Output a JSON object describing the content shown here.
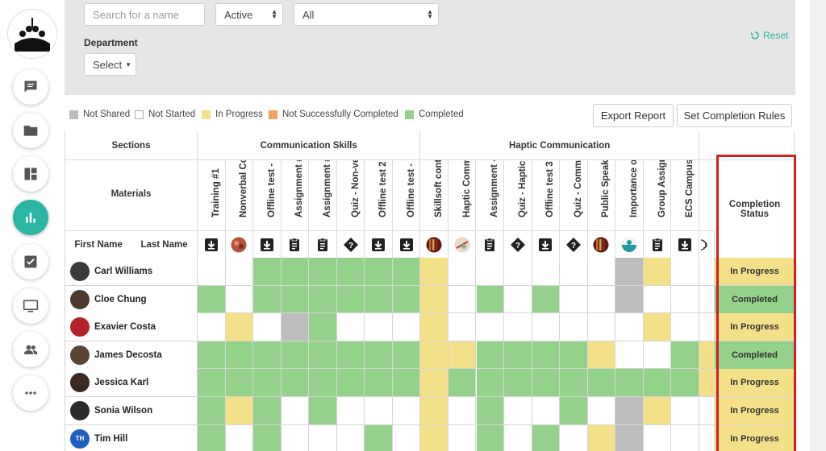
{
  "filters": {
    "search_placeholder": "Search for a name",
    "status_value": "Active",
    "group_value": "All",
    "department_label": "Department",
    "department_value": "Select",
    "reset_label": "Reset"
  },
  "legend": [
    {
      "label": "Not Shared",
      "color": "#bdbdbd"
    },
    {
      "label": "Not Started",
      "color": "#ffffff"
    },
    {
      "label": "In Progress",
      "color": "#f5e08a"
    },
    {
      "label": "Not Successfully Completed",
      "color": "#f4a260"
    },
    {
      "label": "Completed",
      "color": "#94d18a"
    }
  ],
  "actions": {
    "export_label": "Export Report",
    "rules_label": "Set Completion Rules"
  },
  "table": {
    "sections_label": "Sections",
    "materials_label": "Materials",
    "first_name_label": "First Name",
    "last_name_label": "Last Name",
    "completion_label": "Completion Status",
    "sections": [
      {
        "name": "Communication Skills",
        "span": 8
      },
      {
        "name": "Haptic Communication",
        "span": 10
      }
    ],
    "materials": [
      {
        "name": "Training #1",
        "icon": "download-icon"
      },
      {
        "name": "Nonverbal Co...",
        "icon": "thumbnail-orange"
      },
      {
        "name": "Offline test - ...",
        "icon": "download-icon"
      },
      {
        "name": "Assignment #...",
        "icon": "clipboard-icon"
      },
      {
        "name": "Assignment #...",
        "icon": "clipboard-icon"
      },
      {
        "name": "Quiz - Non-ve...",
        "icon": "quiz-icon"
      },
      {
        "name": "Offline test 2 ...",
        "icon": "download-icon"
      },
      {
        "name": "Offline test - ...",
        "icon": "download-icon"
      },
      {
        "name": "Skillsoft cont...",
        "icon": "thumbnail-books"
      },
      {
        "name": "Haptic Comm...",
        "icon": "thumbnail-craft"
      },
      {
        "name": "Assignment - ...",
        "icon": "clipboard-icon"
      },
      {
        "name": "Quiz - Haptic ...",
        "icon": "quiz-icon"
      },
      {
        "name": "Offline test 3 ...",
        "icon": "download-icon"
      },
      {
        "name": "Quiz - Comm...",
        "icon": "quiz-icon"
      },
      {
        "name": "Public Speaki...",
        "icon": "thumbnail-books"
      },
      {
        "name": "Importance o...",
        "icon": "thumbnail-teal"
      },
      {
        "name": "Group Assign...",
        "icon": "clipboard-icon"
      },
      {
        "name": "ECS Campus ...",
        "icon": "download-icon"
      }
    ],
    "status_colors": {
      "G": "#94d18a",
      "Y": "#f5e08a",
      "S": "#bdbdbd",
      "W": "#ffffff"
    },
    "rows": [
      {
        "name": "Carl Williams",
        "status": "In Progress",
        "avatar": "#3b3b3b",
        "cells": "WWGGGGGGYWWWWWWSYW"
      },
      {
        "name": "Cloe Chung",
        "status": "Completed",
        "avatar": "#4a3a30",
        "cells": "GWGGGGGGYWGWGWWSWW"
      },
      {
        "name": "Exavier Costa",
        "status": "In Progress",
        "avatar": "#b3222a",
        "cells": "WYWSGWWWYWWWWWWWYW"
      },
      {
        "name": "James Decosta",
        "status": "Completed",
        "avatar": "#5a4433",
        "cells": "GGGGGGGGYYGGGGYWWG"
      },
      {
        "name": "Jessica Karl",
        "status": "In Progress",
        "avatar": "#3a2a22",
        "cells": "GGGGGGGGYGGGGGGGGG"
      },
      {
        "name": "Sonia Wilson",
        "status": "In Progress",
        "avatar": "#2e2a28",
        "cells": "GYGWGWWWYWGWWGWSYW"
      },
      {
        "name": "Tim Hill",
        "status": "In Progress",
        "avatar": "#1e5fbf",
        "initials": "TH",
        "cells": "GWGWWWGWYWGWGWYSWW"
      }
    ]
  }
}
